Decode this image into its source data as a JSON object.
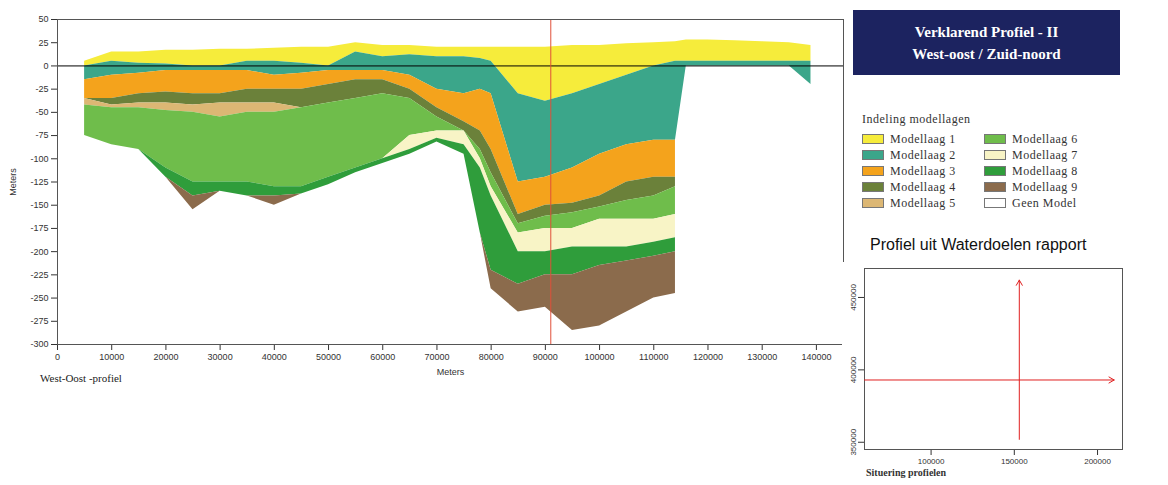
{
  "chart_data": [
    {
      "type": "area",
      "title": "Verklarend Profiel - II",
      "subtitle": "West-oost / Zuid-noord",
      "caption": "West-Oost -profiel",
      "note": "Profiel uit Waterdoelen rapport",
      "legend_title": "Indeling modellagen",
      "legend": "right",
      "xlabel": "Meters",
      "ylabel": "Meters",
      "xlim": [
        0,
        145000
      ],
      "ylim": [
        -300,
        50
      ],
      "xticks": [
        0,
        10000,
        20000,
        30000,
        40000,
        50000,
        60000,
        70000,
        80000,
        90000,
        100000,
        110000,
        120000,
        130000,
        140000
      ],
      "yticks": [
        -300,
        -275,
        -250,
        -225,
        -200,
        -175,
        -150,
        -125,
        -100,
        -75,
        -50,
        -25,
        0,
        25,
        50
      ],
      "grid": false,
      "zero_line": 0,
      "section_line_x": 91000,
      "x": [
        5000,
        10000,
        15000,
        20000,
        25000,
        30000,
        35000,
        40000,
        45000,
        50000,
        55000,
        60000,
        65000,
        70000,
        75000,
        78000,
        80000,
        85000,
        90000,
        95000,
        100000,
        105000,
        110000,
        114000,
        116000,
        120000,
        125000,
        130000,
        135000,
        139000
      ],
      "series": [
        {
          "name": "Modellaag 1",
          "color": "#f6ec3b",
          "top": [
            5,
            15,
            15,
            17,
            17,
            18,
            18,
            19,
            20,
            20,
            25,
            22,
            22,
            20,
            20,
            20,
            20,
            20,
            20,
            22,
            22,
            24,
            25,
            26,
            28,
            28,
            27,
            26,
            25,
            22
          ],
          "bottom": [
            0,
            5,
            3,
            2,
            0,
            0,
            5,
            5,
            3,
            0,
            15,
            10,
            12,
            10,
            10,
            8,
            5,
            -30,
            -38,
            -30,
            -20,
            -10,
            0,
            5,
            5,
            5,
            5,
            5,
            5,
            5
          ]
        },
        {
          "name": "Modellaag 2",
          "color": "#3ba68a",
          "top": [
            0,
            5,
            3,
            2,
            0,
            0,
            5,
            5,
            3,
            0,
            15,
            10,
            12,
            10,
            10,
            8,
            5,
            -30,
            -38,
            -30,
            -20,
            -10,
            0,
            5,
            5,
            5,
            5,
            5,
            5,
            5
          ],
          "bottom": [
            -15,
            -10,
            -8,
            -5,
            -5,
            -5,
            -5,
            -10,
            -8,
            -5,
            -5,
            -5,
            -10,
            -25,
            -30,
            -25,
            -30,
            -125,
            -120,
            -110,
            -95,
            -85,
            -80,
            -80,
            0,
            0,
            0,
            0,
            0,
            -20
          ]
        },
        {
          "name": "Modellaag 3",
          "color": "#f4a31c",
          "top": [
            -15,
            -10,
            -8,
            -5,
            -5,
            -5,
            -5,
            -10,
            -8,
            -5,
            -5,
            -5,
            -10,
            -25,
            -30,
            -25,
            -30,
            -125,
            -120,
            -110,
            -95,
            -85,
            -80,
            -80,
            null,
            null,
            null,
            null,
            null,
            null
          ],
          "bottom": [
            -35,
            -35,
            -30,
            -28,
            -30,
            -30,
            -25,
            -25,
            -25,
            -20,
            -15,
            -15,
            -25,
            -45,
            -60,
            -70,
            -90,
            -160,
            -150,
            -148,
            -140,
            -125,
            -120,
            -120,
            null,
            null,
            null,
            null,
            null,
            null
          ]
        },
        {
          "name": "Modellaag 4",
          "color": "#6b813a",
          "top": [
            -35,
            -35,
            -30,
            -28,
            -30,
            -30,
            -25,
            -25,
            -25,
            -20,
            -15,
            -15,
            -25,
            -45,
            -60,
            -70,
            -90,
            -160,
            -150,
            -148,
            -140,
            -125,
            -120,
            -120,
            null,
            null,
            null,
            null,
            null,
            null
          ],
          "bottom": [
            -35,
            -42,
            -40,
            -40,
            -42,
            -40,
            -40,
            -40,
            -45,
            -40,
            -35,
            -30,
            -35,
            -55,
            -70,
            -90,
            -115,
            -170,
            -162,
            -158,
            -152,
            -145,
            -140,
            -130,
            null,
            null,
            null,
            null,
            null,
            null
          ]
        },
        {
          "name": "Modellaag 5",
          "color": "#dcb774",
          "top": [
            -35,
            -42,
            -40,
            -40,
            -42,
            -40,
            -40,
            -40,
            -45,
            -40,
            -35,
            -30,
            -35,
            -55,
            -70,
            -90,
            -115,
            -170,
            -162,
            -158,
            -152,
            -145,
            -140,
            -130,
            null,
            null,
            null,
            null,
            null,
            null
          ],
          "bottom": [
            -42,
            -45,
            -45,
            -48,
            -50,
            -55,
            -50,
            -50,
            -45,
            -40,
            -35,
            -30,
            -35,
            -55,
            -70,
            -90,
            -115,
            -170,
            -162,
            -158,
            -152,
            -145,
            -140,
            -130,
            null,
            null,
            null,
            null,
            null,
            null
          ]
        },
        {
          "name": "Modellaag 6",
          "color": "#6fbd4b",
          "top": [
            -42,
            -45,
            -45,
            -48,
            -50,
            -55,
            -50,
            -50,
            -45,
            -40,
            -35,
            -30,
            -35,
            -55,
            -70,
            -90,
            -115,
            -170,
            -162,
            -158,
            -152,
            -145,
            -140,
            -130,
            null,
            null,
            null,
            null,
            null,
            null
          ],
          "bottom": [
            -75,
            -85,
            -90,
            -110,
            -125,
            -125,
            -125,
            -130,
            -130,
            -120,
            -110,
            -100,
            -75,
            -70,
            -70,
            -100,
            -130,
            -180,
            -175,
            -175,
            -165,
            -165,
            -165,
            -160,
            null,
            null,
            null,
            null,
            null,
            null
          ]
        },
        {
          "name": "Modellaag 7",
          "color": "#f8f4c6",
          "top": [
            -75,
            -85,
            -90,
            -110,
            -125,
            -125,
            -125,
            -130,
            -130,
            -120,
            -110,
            -100,
            -75,
            -70,
            -70,
            -100,
            -130,
            -180,
            -175,
            -175,
            -165,
            -165,
            -165,
            -160,
            null,
            null,
            null,
            null,
            null,
            null
          ],
          "bottom": [
            -75,
            -85,
            -90,
            -110,
            -125,
            -125,
            -125,
            -130,
            -130,
            -120,
            -110,
            -100,
            -90,
            -78,
            -85,
            -110,
            -140,
            -200,
            -200,
            -195,
            -195,
            -195,
            -190,
            -185,
            null,
            null,
            null,
            null,
            null,
            null
          ]
        },
        {
          "name": "Modellaag 8",
          "color": "#2f9d3b",
          "top": [
            -75,
            -85,
            -90,
            -110,
            -125,
            -125,
            -125,
            -130,
            -130,
            -120,
            -110,
            -100,
            -90,
            -78,
            -85,
            -110,
            -140,
            -200,
            -200,
            -195,
            -195,
            -195,
            -190,
            -185,
            null,
            null,
            null,
            null,
            null,
            null
          ],
          "bottom": [
            -75,
            -85,
            -90,
            -120,
            -140,
            -135,
            -140,
            -140,
            -138,
            -128,
            -115,
            -105,
            -95,
            -82,
            -95,
            -180,
            -220,
            -235,
            -225,
            -225,
            -215,
            -210,
            -205,
            -200,
            null,
            null,
            null,
            null,
            null,
            null
          ]
        },
        {
          "name": "Modellaag 9",
          "color": "#8b6b4c",
          "top": [
            -75,
            -85,
            -90,
            -120,
            -140,
            -135,
            -140,
            -140,
            -138,
            -128,
            -115,
            -105,
            -95,
            -82,
            -95,
            -180,
            -220,
            -235,
            -225,
            -225,
            -215,
            -210,
            -205,
            -200,
            null,
            null,
            null,
            null,
            null,
            null
          ],
          "bottom": [
            -75,
            -85,
            -90,
            -120,
            -155,
            -135,
            -140,
            -150,
            -138,
            -128,
            -115,
            -105,
            -95,
            -82,
            -95,
            -180,
            -240,
            -265,
            -260,
            -285,
            -280,
            -265,
            -250,
            -245,
            null,
            null,
            null,
            null,
            null,
            null
          ]
        },
        {
          "name": "Geen Model",
          "color": "#ffffff",
          "top": [
            null,
            null,
            null,
            null,
            null,
            null,
            null,
            null,
            null,
            null,
            null,
            null,
            null,
            null,
            null,
            null,
            null,
            null,
            null,
            null,
            null,
            null,
            null,
            null,
            null,
            null,
            null,
            null,
            null,
            null
          ],
          "bottom": [
            null,
            null,
            null,
            null,
            null,
            null,
            null,
            null,
            null,
            null,
            null,
            null,
            null,
            null,
            null,
            null,
            null,
            null,
            null,
            null,
            null,
            null,
            null,
            null,
            null,
            null,
            null,
            null,
            null,
            null
          ]
        }
      ]
    },
    {
      "type": "map",
      "xlabel": "Situering profielen",
      "xlim": [
        60000,
        215000
      ],
      "ylim": [
        345000,
        470000
      ],
      "xticks": [
        100000,
        150000,
        200000
      ],
      "yticks": [
        350000,
        400000,
        450000
      ],
      "color": "#e02020",
      "profiles": [
        {
          "x1": 60000,
          "y1": 393000,
          "x2": 210000,
          "y2": 393000
        },
        {
          "x1": 153000,
          "y1": 352000,
          "x2": 153000,
          "y2": 462000
        }
      ]
    }
  ]
}
